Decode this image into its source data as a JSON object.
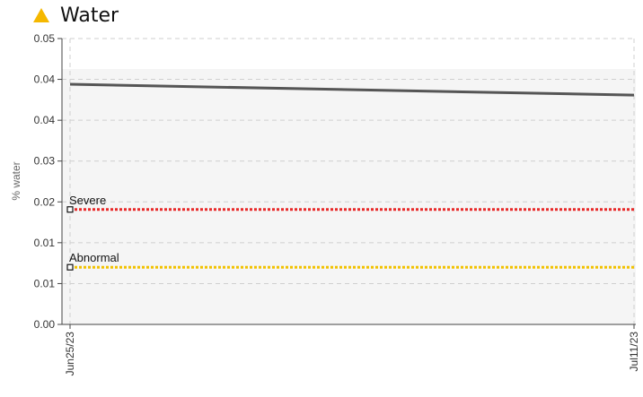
{
  "header": {
    "title": "Water",
    "icon": "warning-triangle-icon",
    "icon_color": "#f5b800"
  },
  "chart_data": {
    "type": "line",
    "title": "Water",
    "ylabel": "% water",
    "xlabel": "",
    "ylim": [
      0,
      0.05
    ],
    "y_ticks": [
      0,
      0.00714,
      0.01429,
      0.02143,
      0.02857,
      0.03571,
      0.04286,
      0.05
    ],
    "y_tick_labels": [
      "0.00",
      "0.01",
      "0.01",
      "0.02",
      "0.03",
      "0.04",
      "0.04",
      "0.05"
    ],
    "x_tick_labels": [
      "Jun25/23",
      "Jul11/23"
    ],
    "grid": true,
    "series": [
      {
        "color": "#555555",
        "x": [
          "Jun25/23",
          "Jul11/23"
        ],
        "values": [
          0.042,
          0.0401
        ]
      }
    ],
    "thresholds": [
      {
        "name": "Severe",
        "value": 0.0201,
        "color": "#e82a2a"
      },
      {
        "name": "Abnormal",
        "value": 0.01,
        "color": "#f2c200"
      }
    ]
  }
}
